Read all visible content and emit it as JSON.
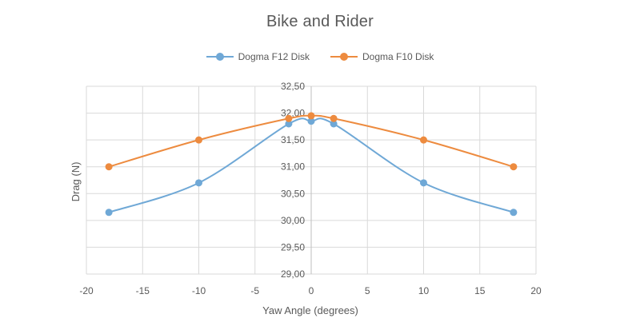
{
  "chart_data": {
    "type": "line",
    "title": "Bike and Rider",
    "xlabel": "Yaw Angle (degrees)",
    "ylabel": "Drag (N)",
    "xlim": [
      -20,
      20
    ],
    "ylim": [
      29.0,
      32.5
    ],
    "x_ticks": [
      -20,
      -15,
      -10,
      -5,
      0,
      5,
      10,
      15,
      20
    ],
    "x_tick_labels": [
      "-20",
      "-15",
      "-10",
      "-5",
      "0",
      "5",
      "10",
      "15",
      "20"
    ],
    "y_ticks": [
      29.0,
      29.5,
      30.0,
      30.5,
      31.0,
      31.5,
      32.0,
      32.5
    ],
    "y_tick_labels": [
      "29,00",
      "29,50",
      "30,00",
      "30,50",
      "31,00",
      "31,50",
      "32,00",
      "32,50"
    ],
    "grid": true,
    "legend_position": "top",
    "smooth": true,
    "series": [
      {
        "name": "Dogma F12 Disk",
        "color": "#6fa8d6",
        "x": [
          -18,
          -10,
          -2,
          0,
          2,
          10,
          18
        ],
        "y": [
          30.15,
          30.7,
          31.8,
          31.85,
          31.8,
          30.7,
          30.15
        ]
      },
      {
        "name": "Dogma F10 Disk",
        "color": "#ed8b3f",
        "x": [
          -18,
          -10,
          -2,
          0,
          2,
          10,
          18
        ],
        "y": [
          31.0,
          31.5,
          31.9,
          31.95,
          31.9,
          31.5,
          31.0
        ]
      }
    ]
  }
}
